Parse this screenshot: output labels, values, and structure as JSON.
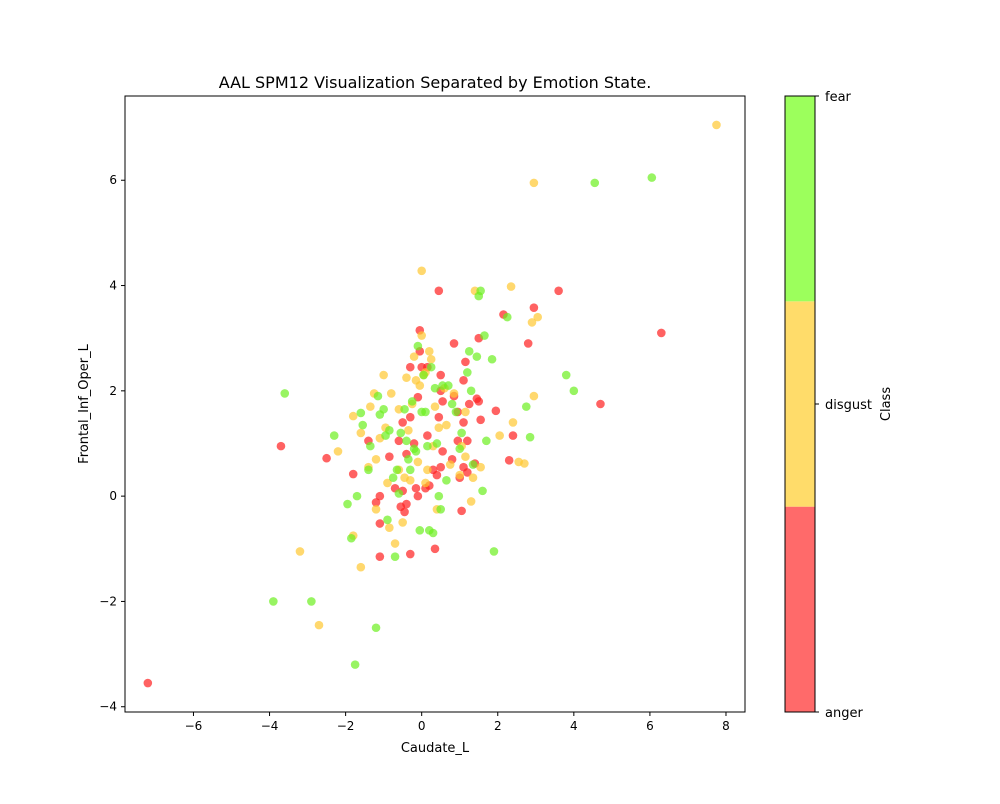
{
  "chart_data": {
    "type": "scatter",
    "title": "AAL SPM12 Visualization Separated by Emotion State.",
    "xlabel": "Caudate_L",
    "ylabel": "Frontal_Inf_Oper_L",
    "xlim": [
      -7.8,
      8.5
    ],
    "ylim": [
      -4.1,
      7.6
    ],
    "xticks": [
      -6,
      -4,
      -2,
      0,
      2,
      4,
      6,
      8
    ],
    "yticks": [
      -4,
      -2,
      0,
      2,
      4,
      6
    ],
    "grid": false,
    "colorbar": {
      "label": "Class",
      "classes": [
        "anger",
        "disgust",
        "fear"
      ],
      "tick_labels": [
        "anger",
        "disgust",
        "fear"
      ],
      "colors": [
        "#ff6a6a",
        "#ffdc6a",
        "#9cff5c"
      ]
    },
    "point_colors": {
      "anger": "#ff2020",
      "disgust": "#ffc830",
      "fear": "#6cf020"
    },
    "point_alpha": 0.7,
    "series": [
      {
        "name": "anger",
        "points": [
          [
            -7.2,
            -3.55
          ],
          [
            -3.7,
            0.95
          ],
          [
            -2.5,
            0.72
          ],
          [
            -1.8,
            0.42
          ],
          [
            -1.4,
            1.05
          ],
          [
            -1.2,
            -0.12
          ],
          [
            -1.1,
            0.0
          ],
          [
            -1.1,
            -0.52
          ],
          [
            -1.1,
            -1.15
          ],
          [
            -0.85,
            0.75
          ],
          [
            -0.7,
            0.15
          ],
          [
            -0.6,
            1.05
          ],
          [
            -0.55,
            -0.2
          ],
          [
            -0.5,
            1.4
          ],
          [
            -0.5,
            0.1
          ],
          [
            -0.45,
            -0.3
          ],
          [
            -0.4,
            0.8
          ],
          [
            -0.4,
            -0.15
          ],
          [
            -0.3,
            -1.1
          ],
          [
            -0.3,
            1.5
          ],
          [
            -0.3,
            2.45
          ],
          [
            -0.2,
            1.0
          ],
          [
            -0.15,
            0.15
          ],
          [
            -0.1,
            0.0
          ],
          [
            -0.1,
            1.88
          ],
          [
            -0.05,
            2.75
          ],
          [
            -0.05,
            3.15
          ],
          [
            0.1,
            0.15
          ],
          [
            0.15,
            2.45
          ],
          [
            0.2,
            0.2
          ],
          [
            0.3,
            0.5
          ],
          [
            0.35,
            -1.0
          ],
          [
            0.4,
            0.4
          ],
          [
            0.45,
            3.9
          ],
          [
            0.45,
            1.5
          ],
          [
            0.5,
            2.3
          ],
          [
            0.5,
            0.55
          ],
          [
            0.5,
            2.0
          ],
          [
            0.55,
            1.8
          ],
          [
            0.55,
            0.85
          ],
          [
            0.8,
            0.7
          ],
          [
            0.85,
            1.9
          ],
          [
            0.85,
            2.9
          ],
          [
            0.95,
            1.05
          ],
          [
            0.95,
            1.6
          ],
          [
            1.0,
            0.35
          ],
          [
            1.05,
            -0.28
          ],
          [
            1.1,
            1.4
          ],
          [
            1.1,
            0.55
          ],
          [
            1.1,
            2.2
          ],
          [
            1.15,
            2.55
          ],
          [
            1.2,
            1.05
          ],
          [
            1.2,
            0.45
          ],
          [
            1.25,
            1.75
          ],
          [
            1.4,
            0.62
          ],
          [
            1.45,
            1.85
          ],
          [
            1.5,
            1.8
          ],
          [
            1.5,
            3.0
          ],
          [
            1.55,
            1.45
          ],
          [
            1.95,
            1.62
          ],
          [
            2.15,
            3.45
          ],
          [
            2.3,
            0.68
          ],
          [
            2.4,
            1.15
          ],
          [
            2.8,
            2.9
          ],
          [
            2.95,
            3.58
          ],
          [
            3.6,
            3.9
          ],
          [
            4.7,
            1.75
          ],
          [
            6.3,
            3.1
          ],
          [
            0.0,
            2.45
          ],
          [
            0.15,
            1.15
          ]
        ]
      },
      {
        "name": "disgust",
        "points": [
          [
            -3.2,
            -1.05
          ],
          [
            -2.7,
            -2.45
          ],
          [
            -2.2,
            0.85
          ],
          [
            -1.8,
            1.52
          ],
          [
            -1.8,
            -0.75
          ],
          [
            -1.6,
            -1.35
          ],
          [
            -1.6,
            1.2
          ],
          [
            -1.4,
            0.55
          ],
          [
            -1.35,
            1.7
          ],
          [
            -1.25,
            1.95
          ],
          [
            -1.2,
            0.7
          ],
          [
            -1.2,
            -0.25
          ],
          [
            -1.1,
            1.1
          ],
          [
            -1.0,
            2.3
          ],
          [
            -0.95,
            1.3
          ],
          [
            -0.9,
            0.25
          ],
          [
            -0.85,
            -0.6
          ],
          [
            -0.8,
            1.95
          ],
          [
            -0.7,
            -0.9
          ],
          [
            -0.6,
            1.65
          ],
          [
            -0.5,
            -0.5
          ],
          [
            -0.45,
            0.35
          ],
          [
            -0.4,
            2.25
          ],
          [
            -0.35,
            1.25
          ],
          [
            -0.3,
            0.3
          ],
          [
            -0.25,
            1.75
          ],
          [
            -0.2,
            2.65
          ],
          [
            -0.15,
            2.2
          ],
          [
            -0.1,
            0.65
          ],
          [
            -0.05,
            2.1
          ],
          [
            0.0,
            4.28
          ],
          [
            0.0,
            3.05
          ],
          [
            0.05,
            2.3
          ],
          [
            0.1,
            0.25
          ],
          [
            0.15,
            0.5
          ],
          [
            0.2,
            2.75
          ],
          [
            0.25,
            2.6
          ],
          [
            0.3,
            0.95
          ],
          [
            0.35,
            1.7
          ],
          [
            0.4,
            -0.25
          ],
          [
            0.45,
            1.3
          ],
          [
            0.6,
            2.05
          ],
          [
            0.65,
            1.35
          ],
          [
            0.75,
            0.6
          ],
          [
            0.85,
            1.95
          ],
          [
            1.0,
            0.4
          ],
          [
            1.05,
            0.95
          ],
          [
            1.15,
            1.6
          ],
          [
            1.15,
            0.75
          ],
          [
            1.3,
            -0.1
          ],
          [
            1.35,
            0.35
          ],
          [
            1.4,
            3.9
          ],
          [
            1.55,
            0.55
          ],
          [
            2.05,
            1.15
          ],
          [
            2.35,
            3.98
          ],
          [
            2.4,
            1.4
          ],
          [
            2.55,
            0.65
          ],
          [
            2.7,
            0.62
          ],
          [
            2.9,
            3.3
          ],
          [
            2.95,
            1.9
          ],
          [
            2.95,
            5.95
          ],
          [
            3.05,
            3.4
          ],
          [
            7.75,
            7.05
          ],
          [
            0.1,
            2.35
          ],
          [
            -0.6,
            0.5
          ]
        ]
      },
      {
        "name": "fear",
        "points": [
          [
            -3.9,
            -2.0
          ],
          [
            -3.6,
            1.95
          ],
          [
            -2.9,
            -2.0
          ],
          [
            -2.3,
            1.15
          ],
          [
            -1.95,
            -0.15
          ],
          [
            -1.85,
            -0.8
          ],
          [
            -1.75,
            -3.2
          ],
          [
            -1.7,
            0.0
          ],
          [
            -1.6,
            1.58
          ],
          [
            -1.55,
            1.35
          ],
          [
            -1.4,
            0.5
          ],
          [
            -1.35,
            0.95
          ],
          [
            -1.2,
            -2.5
          ],
          [
            -1.15,
            1.9
          ],
          [
            -1.1,
            1.55
          ],
          [
            -1.0,
            1.65
          ],
          [
            -0.95,
            1.15
          ],
          [
            -0.9,
            -0.45
          ],
          [
            -0.85,
            1.25
          ],
          [
            -0.75,
            0.35
          ],
          [
            -0.7,
            -1.15
          ],
          [
            -0.65,
            0.5
          ],
          [
            -0.6,
            0.05
          ],
          [
            -0.55,
            1.2
          ],
          [
            -0.45,
            1.65
          ],
          [
            -0.4,
            1.05
          ],
          [
            -0.35,
            0.7
          ],
          [
            -0.3,
            0.5
          ],
          [
            -0.25,
            1.8
          ],
          [
            -0.2,
            0.9
          ],
          [
            -0.15,
            0.85
          ],
          [
            -0.1,
            2.85
          ],
          [
            -0.05,
            -0.65
          ],
          [
            0.0,
            1.6
          ],
          [
            0.05,
            2.3
          ],
          [
            0.1,
            1.6
          ],
          [
            0.15,
            0.95
          ],
          [
            0.2,
            -0.65
          ],
          [
            0.25,
            2.45
          ],
          [
            0.3,
            -0.7
          ],
          [
            0.35,
            2.05
          ],
          [
            0.45,
            0.0
          ],
          [
            0.5,
            -0.25
          ],
          [
            0.55,
            2.1
          ],
          [
            0.65,
            0.3
          ],
          [
            0.7,
            2.1
          ],
          [
            0.8,
            1.75
          ],
          [
            0.9,
            1.6
          ],
          [
            1.0,
            0.9
          ],
          [
            1.05,
            1.2
          ],
          [
            1.2,
            2.35
          ],
          [
            1.25,
            2.75
          ],
          [
            1.3,
            2.0
          ],
          [
            1.35,
            0.6
          ],
          [
            1.45,
            2.65
          ],
          [
            1.5,
            3.8
          ],
          [
            1.55,
            3.9
          ],
          [
            1.6,
            0.1
          ],
          [
            1.65,
            3.05
          ],
          [
            1.7,
            1.05
          ],
          [
            1.85,
            2.6
          ],
          [
            1.9,
            -1.05
          ],
          [
            2.25,
            3.4
          ],
          [
            2.75,
            1.7
          ],
          [
            2.85,
            1.12
          ],
          [
            3.8,
            2.3
          ],
          [
            4.0,
            2.0
          ],
          [
            4.55,
            5.95
          ],
          [
            6.05,
            6.05
          ],
          [
            0.4,
            1.0
          ]
        ]
      }
    ]
  }
}
